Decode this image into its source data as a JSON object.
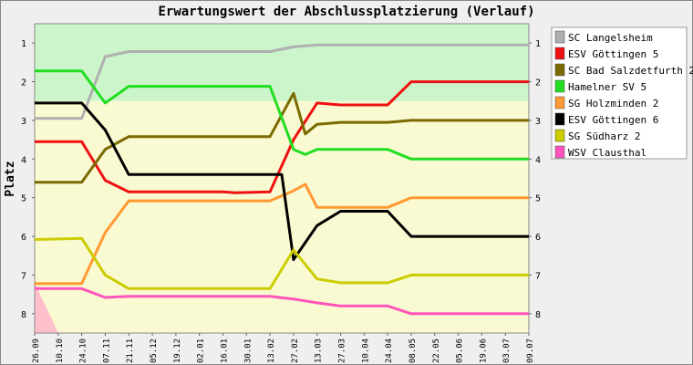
{
  "chart_data": {
    "type": "line",
    "title": "Erwartungswert der Abschlussplatzierung (Verlauf)",
    "ylabel": "Platz",
    "xlabel": "",
    "ylim": [
      1,
      8
    ],
    "y_inverted": true,
    "y_ticks": [
      "1",
      "2",
      "3",
      "4",
      "5",
      "6",
      "7",
      "8"
    ],
    "x_ticks": [
      "26.09",
      "10.10",
      "24.10",
      "07.11",
      "21.11",
      "05.12",
      "19.12",
      "02.01",
      "16.01",
      "30.01",
      "13.02",
      "27.02",
      "13.03",
      "27.03",
      "10.04",
      "24.04",
      "08.05",
      "22.05",
      "05.06",
      "19.06",
      "03.07",
      "09.07"
    ],
    "legend_position": "right",
    "zones": [
      {
        "from": 0.5,
        "to": 2.5,
        "color": "#ccf5cc"
      },
      {
        "from": 2.5,
        "to": 8.5,
        "color": "#fafad2"
      }
    ],
    "corner_mark_color": "#ffc0cb",
    "series": [
      {
        "name": "SC Langelsheim",
        "color": "#b0b0b0",
        "points": [
          [
            0,
            2.95
          ],
          [
            2,
            2.95
          ],
          [
            3,
            1.35
          ],
          [
            4,
            1.22
          ],
          [
            10,
            1.22
          ],
          [
            11,
            1.1
          ],
          [
            12,
            1.05
          ],
          [
            21,
            1.05
          ]
        ]
      },
      {
        "name": "ESV Göttingen 5",
        "color": "#ee1111",
        "points": [
          [
            0,
            3.55
          ],
          [
            2,
            3.55
          ],
          [
            3,
            4.55
          ],
          [
            4,
            4.85
          ],
          [
            8,
            4.85
          ],
          [
            8.5,
            4.87
          ],
          [
            10,
            4.85
          ],
          [
            11,
            3.5
          ],
          [
            12,
            2.55
          ],
          [
            13,
            2.6
          ],
          [
            15,
            2.6
          ],
          [
            16,
            2.0
          ],
          [
            21,
            2.0
          ]
        ]
      },
      {
        "name": "SC Bad Salzdetfurth 2",
        "color": "#7a6a00",
        "points": [
          [
            0,
            4.6
          ],
          [
            2,
            4.6
          ],
          [
            3,
            3.75
          ],
          [
            4,
            3.42
          ],
          [
            10,
            3.42
          ],
          [
            11,
            2.3
          ],
          [
            11.5,
            3.35
          ],
          [
            12,
            3.1
          ],
          [
            13,
            3.05
          ],
          [
            15,
            3.05
          ],
          [
            16,
            3.0
          ],
          [
            21,
            3.0
          ]
        ]
      },
      {
        "name": "Hamelner SV 5",
        "color": "#22dd22",
        "points": [
          [
            0,
            1.72
          ],
          [
            2,
            1.72
          ],
          [
            3,
            2.55
          ],
          [
            4,
            2.12
          ],
          [
            10,
            2.12
          ],
          [
            11,
            3.75
          ],
          [
            11.5,
            3.88
          ],
          [
            12,
            3.75
          ],
          [
            15,
            3.75
          ],
          [
            16,
            4.0
          ],
          [
            21,
            4.0
          ]
        ]
      },
      {
        "name": "SG Holzminden 2",
        "color": "#ff9933",
        "points": [
          [
            0,
            7.22
          ],
          [
            2,
            7.22
          ],
          [
            3,
            5.9
          ],
          [
            4,
            5.08
          ],
          [
            10,
            5.08
          ],
          [
            11,
            4.82
          ],
          [
            11.5,
            4.65
          ],
          [
            12,
            5.25
          ],
          [
            15,
            5.25
          ],
          [
            16,
            5.0
          ],
          [
            21,
            5.0
          ]
        ]
      },
      {
        "name": "ESV Göttingen 6",
        "color": "#000000",
        "points": [
          [
            0,
            2.55
          ],
          [
            2,
            2.55
          ],
          [
            3,
            3.25
          ],
          [
            4,
            4.4
          ],
          [
            10,
            4.4
          ],
          [
            10.5,
            4.4
          ],
          [
            11,
            6.6
          ],
          [
            12,
            5.72
          ],
          [
            13,
            5.35
          ],
          [
            15,
            5.35
          ],
          [
            16,
            6.0
          ],
          [
            21,
            6.0
          ]
        ]
      },
      {
        "name": "SG Südharz 2",
        "color": "#cccc00",
        "points": [
          [
            0,
            6.08
          ],
          [
            2,
            6.05
          ],
          [
            3,
            7.0
          ],
          [
            4,
            7.35
          ],
          [
            10,
            7.35
          ],
          [
            11,
            6.35
          ],
          [
            12,
            7.1
          ],
          [
            13,
            7.2
          ],
          [
            15,
            7.2
          ],
          [
            16,
            7.0
          ],
          [
            21,
            7.0
          ]
        ]
      },
      {
        "name": "WSV Clausthal",
        "color": "#ff55bb",
        "points": [
          [
            0,
            7.35
          ],
          [
            2,
            7.35
          ],
          [
            3,
            7.58
          ],
          [
            4,
            7.55
          ],
          [
            10,
            7.55
          ],
          [
            11,
            7.62
          ],
          [
            12,
            7.72
          ],
          [
            13,
            7.8
          ],
          [
            15,
            7.8
          ],
          [
            16,
            8.0
          ],
          [
            21,
            8.0
          ]
        ]
      }
    ]
  }
}
